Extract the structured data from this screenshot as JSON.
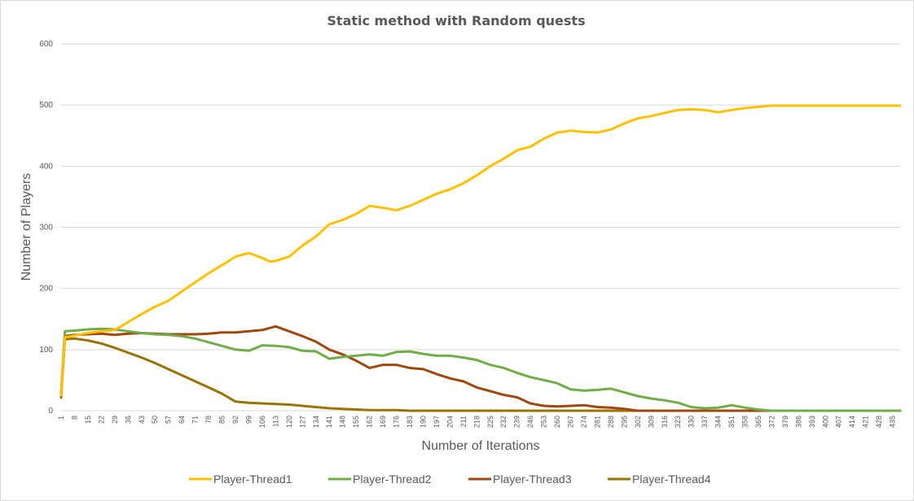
{
  "chart_data": {
    "type": "line",
    "title": "Static method with Random quests",
    "xlabel": "Number of Iterations",
    "ylabel": "Number of Players",
    "ylim": [
      0,
      600
    ],
    "y_ticks": [
      0,
      100,
      200,
      300,
      400,
      500,
      600
    ],
    "x_ticks": [
      1,
      8,
      15,
      22,
      29,
      36,
      43,
      50,
      57,
      64,
      71,
      78,
      85,
      92,
      99,
      106,
      113,
      120,
      127,
      134,
      141,
      148,
      155,
      162,
      169,
      176,
      183,
      190,
      197,
      204,
      211,
      218,
      225,
      232,
      239,
      246,
      253,
      260,
      267,
      274,
      281,
      288,
      295,
      302,
      309,
      316,
      323,
      330,
      337,
      344,
      351,
      358,
      365,
      372,
      379,
      386,
      393,
      400,
      407,
      414,
      421,
      428,
      435
    ],
    "xlim": [
      1,
      439
    ],
    "grid": "horizontal",
    "legend_position": "bottom",
    "series": [
      {
        "name": "Player-Thread1",
        "color": "#FFC000",
        "x": [
          1,
          3,
          8,
          15,
          22,
          29,
          36,
          43,
          50,
          57,
          64,
          71,
          78,
          85,
          92,
          99,
          106,
          110,
          113,
          120,
          127,
          134,
          141,
          148,
          155,
          162,
          169,
          176,
          183,
          190,
          197,
          204,
          211,
          218,
          225,
          232,
          239,
          246,
          253,
          260,
          267,
          274,
          281,
          288,
          295,
          302,
          309,
          316,
          323,
          330,
          337,
          344,
          351,
          358,
          365,
          372,
          379,
          386,
          393,
          400,
          407,
          414,
          421,
          428,
          435,
          439
        ],
        "y": [
          25,
          120,
          123,
          127,
          130,
          132,
          145,
          158,
          170,
          180,
          195,
          210,
          225,
          238,
          252,
          258,
          250,
          244,
          245,
          252,
          270,
          285,
          305,
          312,
          322,
          335,
          332,
          328,
          335,
          345,
          355,
          362,
          372,
          385,
          400,
          412,
          426,
          432,
          445,
          455,
          458,
          456,
          455,
          460,
          470,
          478,
          482,
          487,
          492,
          493,
          492,
          488,
          492,
          495,
          497,
          499,
          499,
          499,
          499,
          499,
          499,
          499,
          499,
          499,
          499,
          499
        ]
      },
      {
        "name": "Player-Thread2",
        "color": "#70AD47",
        "x": [
          1,
          3,
          8,
          15,
          22,
          29,
          36,
          43,
          50,
          57,
          64,
          71,
          78,
          85,
          92,
          99,
          106,
          113,
          120,
          127,
          134,
          141,
          148,
          155,
          162,
          169,
          176,
          183,
          190,
          197,
          204,
          211,
          218,
          225,
          232,
          239,
          246,
          253,
          260,
          267,
          274,
          281,
          288,
          295,
          302,
          309,
          316,
          323,
          330,
          337,
          344,
          351,
          358,
          365,
          372,
          379,
          386,
          393,
          400,
          407,
          414,
          421,
          428,
          435,
          439
        ],
        "y": [
          30,
          130,
          131,
          133,
          134,
          133,
          130,
          127,
          125,
          124,
          122,
          118,
          112,
          106,
          100,
          98,
          107,
          106,
          104,
          98,
          97,
          85,
          88,
          90,
          92,
          90,
          96,
          97,
          93,
          90,
          90,
          87,
          83,
          75,
          70,
          62,
          55,
          50,
          45,
          35,
          33,
          34,
          36,
          30,
          24,
          20,
          17,
          13,
          6,
          4,
          5,
          9,
          5,
          2,
          0,
          0,
          0,
          0,
          0,
          0,
          0,
          0,
          0,
          0,
          0
        ]
      },
      {
        "name": "Player-Thread3",
        "color": "#9E480E",
        "x": [
          1,
          3,
          8,
          15,
          22,
          29,
          36,
          43,
          50,
          57,
          64,
          71,
          78,
          85,
          92,
          99,
          106,
          113,
          120,
          127,
          134,
          141,
          148,
          155,
          162,
          169,
          176,
          183,
          190,
          197,
          204,
          211,
          218,
          225,
          232,
          239,
          246,
          253,
          260,
          267,
          274,
          281,
          288,
          295,
          302,
          309,
          316,
          323,
          330,
          337,
          344,
          351,
          358,
          365,
          372,
          379,
          386,
          393,
          400,
          407,
          414,
          421,
          428,
          435,
          439
        ],
        "y": [
          22,
          122,
          124,
          125,
          126,
          124,
          126,
          127,
          126,
          125,
          125,
          125,
          126,
          128,
          128,
          130,
          132,
          138,
          130,
          122,
          113,
          100,
          92,
          82,
          70,
          75,
          75,
          70,
          68,
          60,
          53,
          48,
          38,
          32,
          26,
          22,
          12,
          8,
          7,
          8,
          9,
          6,
          5,
          3,
          0,
          0,
          0,
          0,
          0,
          0,
          0,
          0,
          0,
          0,
          0,
          0,
          0,
          0,
          0,
          0,
          0,
          0,
          0,
          0,
          0
        ]
      },
      {
        "name": "Player-Thread4",
        "color": "#997300",
        "x": [
          1,
          3,
          8,
          15,
          22,
          29,
          36,
          43,
          50,
          57,
          64,
          71,
          78,
          85,
          92,
          99,
          106,
          113,
          120,
          127,
          134,
          141,
          148,
          155,
          162,
          169,
          176,
          183,
          190,
          197,
          204,
          211,
          218,
          225,
          232,
          239,
          246,
          253,
          260,
          267,
          274,
          281,
          288,
          295,
          302,
          309,
          316,
          323,
          330,
          337,
          344,
          351,
          358,
          365,
          372,
          379,
          386,
          393,
          400,
          407,
          414,
          421,
          428,
          435,
          439
        ],
        "y": [
          28,
          117,
          118,
          115,
          110,
          103,
          95,
          87,
          78,
          68,
          58,
          48,
          38,
          28,
          15,
          13,
          12,
          11,
          10,
          8,
          6,
          4,
          3,
          2,
          1,
          1,
          1,
          0,
          0,
          0,
          0,
          0,
          0,
          0,
          0,
          0,
          0,
          0,
          0,
          0,
          0,
          0,
          0,
          0,
          0,
          0,
          0,
          0,
          0,
          0,
          0,
          0,
          0,
          0,
          0,
          0,
          0,
          0,
          0,
          0,
          0,
          0,
          0,
          0,
          0
        ]
      }
    ]
  }
}
